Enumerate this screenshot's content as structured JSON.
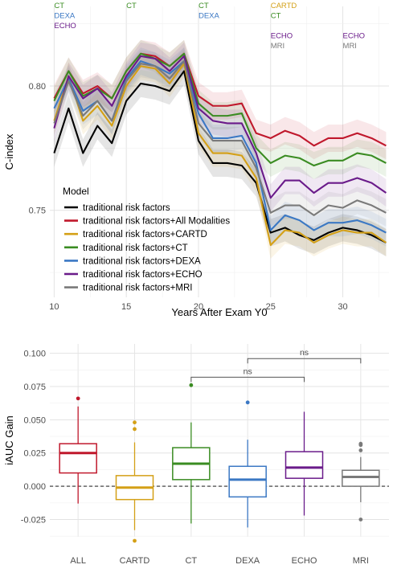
{
  "chart_data": [
    {
      "type": "line",
      "xlabel": "Years After Exam Y0",
      "ylabel": "C-index",
      "xlim": [
        9.7,
        33.2
      ],
      "ylim": [
        0.715,
        0.832
      ],
      "xticks": [
        10,
        15,
        20,
        25,
        30
      ],
      "yticks": [
        0.75,
        0.8
      ],
      "ytick_labels": [
        "0.75",
        "0.80"
      ],
      "grid": true,
      "legend_title": "Model",
      "legend_position": "bottom-left",
      "x": [
        10,
        11,
        12,
        13,
        14,
        15,
        16,
        17,
        18,
        19,
        20,
        21,
        22,
        23,
        24,
        25,
        26,
        27,
        28,
        29,
        30,
        31,
        32,
        33
      ],
      "series": [
        {
          "name": "traditional risk factors",
          "color": "#000000",
          "values": [
            0.773,
            0.791,
            0.773,
            0.784,
            0.777,
            0.794,
            0.801,
            0.8,
            0.798,
            0.806,
            0.778,
            0.769,
            0.769,
            0.768,
            0.761,
            0.741,
            0.743,
            0.74,
            0.738,
            0.741,
            0.743,
            0.742,
            0.74,
            0.737
          ]
        },
        {
          "name": "traditional risk factors+All Modalities",
          "color": "#c0182c",
          "values": [
            0.795,
            0.806,
            0.797,
            0.8,
            0.795,
            0.806,
            0.813,
            0.812,
            0.808,
            0.813,
            0.796,
            0.792,
            0.792,
            0.793,
            0.781,
            0.779,
            0.782,
            0.78,
            0.776,
            0.779,
            0.779,
            0.781,
            0.779,
            0.776
          ]
        },
        {
          "name": "traditional risk factors+CARTD",
          "color": "#d4a017",
          "values": [
            0.786,
            0.804,
            0.786,
            0.792,
            0.784,
            0.8,
            0.808,
            0.807,
            0.801,
            0.809,
            0.781,
            0.773,
            0.773,
            0.772,
            0.763,
            0.736,
            0.742,
            0.741,
            0.737,
            0.74,
            0.742,
            0.741,
            0.741,
            0.737
          ]
        },
        {
          "name": "traditional risk factors+CT",
          "color": "#3a8c22",
          "values": [
            0.794,
            0.806,
            0.796,
            0.799,
            0.795,
            0.806,
            0.813,
            0.811,
            0.808,
            0.813,
            0.793,
            0.788,
            0.788,
            0.789,
            0.775,
            0.769,
            0.772,
            0.771,
            0.768,
            0.77,
            0.77,
            0.773,
            0.772,
            0.769
          ]
        },
        {
          "name": "traditional risk factors+DEXA",
          "color": "#3b78c4",
          "values": [
            0.791,
            0.803,
            0.79,
            0.794,
            0.786,
            0.803,
            0.81,
            0.808,
            0.805,
            0.81,
            0.789,
            0.779,
            0.779,
            0.78,
            0.769,
            0.742,
            0.748,
            0.746,
            0.742,
            0.745,
            0.745,
            0.746,
            0.744,
            0.741
          ]
        },
        {
          "name": "traditional risk factors+ECHO",
          "color": "#6a1b8a",
          "values": [
            0.783,
            0.804,
            0.795,
            0.799,
            0.792,
            0.804,
            0.812,
            0.811,
            0.806,
            0.812,
            0.791,
            0.786,
            0.785,
            0.785,
            0.773,
            0.755,
            0.762,
            0.762,
            0.757,
            0.761,
            0.761,
            0.763,
            0.761,
            0.757
          ]
        },
        {
          "name": "traditional risk factors+MRI",
          "color": "#7a7a7a",
          "values": [
            0.785,
            0.802,
            0.788,
            0.794,
            0.786,
            0.802,
            0.809,
            0.808,
            0.803,
            0.81,
            0.785,
            0.778,
            0.778,
            0.778,
            0.767,
            0.749,
            0.752,
            0.752,
            0.748,
            0.752,
            0.751,
            0.754,
            0.752,
            0.749
          ]
        }
      ],
      "annotations": [
        {
          "x": 10,
          "labels": [
            {
              "text": "CT",
              "color": "#3a8c22"
            },
            {
              "text": "DEXA",
              "color": "#3b78c4"
            },
            {
              "text": "ECHO",
              "color": "#6a1b8a"
            }
          ]
        },
        {
          "x": 15,
          "labels": [
            {
              "text": "CT",
              "color": "#3a8c22"
            }
          ]
        },
        {
          "x": 20,
          "labels": [
            {
              "text": "CT",
              "color": "#3a8c22"
            },
            {
              "text": "DEXA",
              "color": "#3b78c4"
            }
          ]
        },
        {
          "x": 25,
          "labels": [
            {
              "text": "CARTD",
              "color": "#d4a017"
            },
            {
              "text": "CT",
              "color": "#3a8c22"
            },
            {
              "text": "",
              "color": "#000000"
            },
            {
              "text": "ECHO",
              "color": "#6a1b8a"
            },
            {
              "text": "MRI",
              "color": "#7a7a7a"
            }
          ]
        },
        {
          "x": 30,
          "labels": [
            {
              "text": "",
              "color": "#000000"
            },
            {
              "text": "",
              "color": "#000000"
            },
            {
              "text": "",
              "color": "#000000"
            },
            {
              "text": "ECHO",
              "color": "#6a1b8a"
            },
            {
              "text": "MRI",
              "color": "#7a7a7a"
            }
          ]
        }
      ]
    },
    {
      "type": "box",
      "xlabel": "",
      "ylabel": "iAUC Gain",
      "ylim": [
        -0.038,
        0.107
      ],
      "yticks": [
        -0.025,
        0.0,
        0.025,
        0.05,
        0.075,
        0.1
      ],
      "ytick_labels": [
        "-0.025",
        "0.000",
        "0.025",
        "0.050",
        "0.075",
        "0.100"
      ],
      "reference_line": 0,
      "grid": true,
      "categories": [
        "ALL",
        "CARTD",
        "CT",
        "DEXA",
        "ECHO",
        "MRI"
      ],
      "boxes": [
        {
          "name": "ALL",
          "color": "#c0182c",
          "min": -0.013,
          "q1": 0.01,
          "median": 0.025,
          "q3": 0.032,
          "max": 0.06,
          "outliers": [
            0.066
          ]
        },
        {
          "name": "CARTD",
          "color": "#d4a017",
          "min": -0.033,
          "q1": -0.01,
          "median": -0.001,
          "q3": 0.008,
          "max": 0.033,
          "outliers": [
            0.048,
            0.043,
            -0.041
          ]
        },
        {
          "name": "CT",
          "color": "#3a8c22",
          "min": -0.028,
          "q1": 0.005,
          "median": 0.017,
          "q3": 0.029,
          "max": 0.048,
          "outliers": [
            0.076
          ]
        },
        {
          "name": "DEXA",
          "color": "#3b78c4",
          "min": -0.031,
          "q1": -0.008,
          "median": 0.005,
          "q3": 0.015,
          "max": 0.035,
          "outliers": [
            0.063
          ]
        },
        {
          "name": "ECHO",
          "color": "#6a1b8a",
          "min": -0.022,
          "q1": 0.006,
          "median": 0.014,
          "q3": 0.026,
          "max": 0.056,
          "outliers": []
        },
        {
          "name": "MRI",
          "color": "#7a7a7a",
          "min": -0.012,
          "q1": 0.0,
          "median": 0.007,
          "q3": 0.012,
          "max": 0.022,
          "outliers": [
            0.032,
            0.031,
            0.027,
            -0.025
          ]
        }
      ],
      "significance": [
        {
          "from": "CT",
          "to": "ECHO",
          "y": 0.082,
          "label": "ns"
        },
        {
          "from": "DEXA",
          "to": "MRI",
          "y": 0.096,
          "label": "ns"
        }
      ]
    }
  ]
}
